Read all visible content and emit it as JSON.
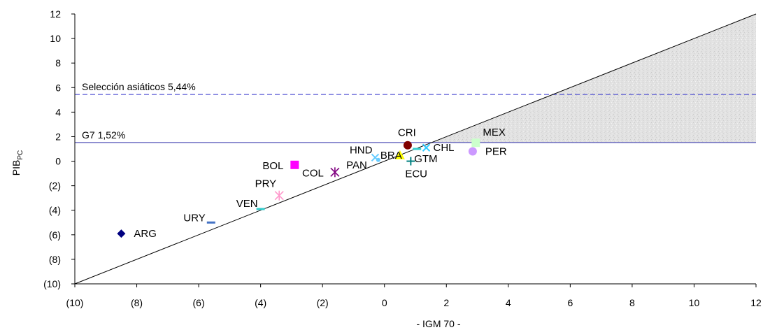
{
  "chart_data": {
    "type": "scatter",
    "xlabel": "- IGM 70 -",
    "ylabel_main": "PIB",
    "ylabel_sub": "PC",
    "xlim": [
      -10,
      12
    ],
    "ylim": [
      -10,
      12
    ],
    "x_ticks": [
      -10,
      -8,
      -6,
      -4,
      -2,
      0,
      2,
      4,
      6,
      8,
      10,
      12
    ],
    "y_ticks": [
      -10,
      -8,
      -6,
      -4,
      -2,
      0,
      2,
      4,
      6,
      8,
      10,
      12
    ],
    "x_tick_labels": [
      "(10)",
      "(8)",
      "(6)",
      "(4)",
      "(2)",
      "0",
      "2",
      "4",
      "6",
      "8",
      "10",
      "12"
    ],
    "y_tick_labels": [
      "(10)",
      "(8)",
      "(6)",
      "(4)",
      "(2)",
      "0",
      "2",
      "4",
      "6",
      "8",
      "10",
      "12"
    ],
    "grid": false,
    "reference_lines": [
      {
        "label": "Selección asiáticos 5,44%",
        "y": 5.44,
        "style": "dashed",
        "color": "#3333cc"
      },
      {
        "label": "G7 1,52%",
        "y": 1.52,
        "style": "solid",
        "color": "#3333aa"
      }
    ],
    "diagonal": {
      "from": [
        -10,
        -10
      ],
      "to": [
        12,
        12
      ],
      "color": "#000000"
    },
    "shaded_region": "above diagonal, below 12, right of G7 line intersection",
    "points": [
      {
        "label": "ARG",
        "x": -8.5,
        "y": -5.9,
        "marker": "diamond",
        "color": "#000080"
      },
      {
        "label": "URY",
        "x": -5.6,
        "y": -5.0,
        "marker": "dash",
        "color": "#4472c4"
      },
      {
        "label": "VEN",
        "x": -4.0,
        "y": -3.9,
        "marker": "dash",
        "color": "#33cccc"
      },
      {
        "label": "PRY",
        "x": -3.4,
        "y": -2.8,
        "marker": "asterisk",
        "color": "#ff99cc"
      },
      {
        "label": "BOL",
        "x": -2.9,
        "y": -0.3,
        "marker": "square",
        "color": "#ff00ff"
      },
      {
        "label": "COL",
        "x": -1.6,
        "y": -0.9,
        "marker": "star",
        "color": "#800080"
      },
      {
        "label": "HND",
        "x": -0.3,
        "y": 0.3,
        "marker": "x",
        "color": "#66ccff"
      },
      {
        "label": "PAN",
        "x": -0.2,
        "y": 0.1,
        "marker": "dot",
        "color": "#66ccff"
      },
      {
        "label": "BRA",
        "x": 0.5,
        "y": 0.5,
        "marker": "triangle",
        "color": "#ffff00"
      },
      {
        "label": "ECU",
        "x": 0.85,
        "y": 0.0,
        "marker": "plus",
        "color": "#008080"
      },
      {
        "label": "GTM",
        "x": 1.05,
        "y": 1.0,
        "marker": "dash",
        "color": "#33cccc"
      },
      {
        "label": "CRI",
        "x": 0.75,
        "y": 1.3,
        "marker": "circle",
        "color": "#800000"
      },
      {
        "label": "CHL",
        "x": 1.35,
        "y": 1.1,
        "marker": "x",
        "color": "#33ccff"
      },
      {
        "label": "MEX",
        "x": 2.95,
        "y": 1.5,
        "marker": "square",
        "color": "#ccffcc"
      },
      {
        "label": "PER",
        "x": 2.85,
        "y": 0.8,
        "marker": "circle",
        "color": "#cc99ff"
      }
    ]
  }
}
